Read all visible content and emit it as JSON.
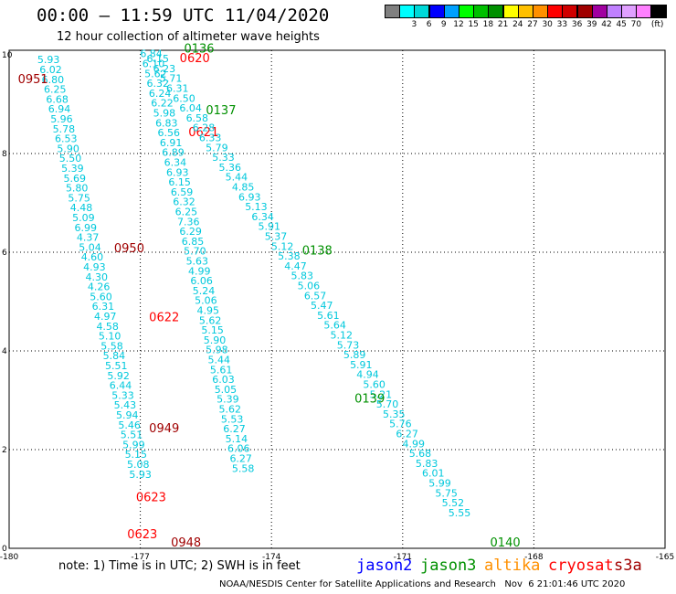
{
  "title": "00:00 – 11:59 UTC 11/04/2020",
  "subtitle": "12 hour collection of altimeter wave heights",
  "legend": {
    "colors": [
      "#808080",
      "#00ffff",
      "#00d8d8",
      "#0000ff",
      "#00a0ff",
      "#00ff00",
      "#00c000",
      "#009000",
      "#ffff00",
      "#ffc000",
      "#ff9000",
      "#ff0000",
      "#d00000",
      "#a00000",
      "#a000a0",
      "#c080ff",
      "#e0a0ff",
      "#ff80ff",
      "#000000"
    ],
    "labels": [
      "3",
      "6",
      "9",
      "12",
      "15",
      "18",
      "21",
      "24",
      "27",
      "30",
      "33",
      "36",
      "39",
      "42",
      "45",
      "70",
      "(ft)"
    ]
  },
  "axes": {
    "x_ticks": [
      "-180",
      "-177",
      "-174",
      "-171",
      "-168",
      "-165"
    ],
    "y_ticks": [
      "0",
      "2",
      "4",
      "6",
      "8",
      "10"
    ]
  },
  "chart_data": {
    "type": "scatter",
    "x_range": [
      -180,
      -165
    ],
    "y_range": [
      0,
      10
    ],
    "tracks": [
      {
        "points": [
          {
            "x": -179.1,
            "y": 9.83,
            "v": "5.93"
          },
          {
            "x": -179.05,
            "y": 9.63,
            "v": "6.02"
          },
          {
            "x": -179.0,
            "y": 9.43,
            "v": "6.80"
          },
          {
            "x": -178.95,
            "y": 9.23,
            "v": "6.25"
          },
          {
            "x": -178.9,
            "y": 9.03,
            "v": "6.68"
          },
          {
            "x": -178.85,
            "y": 8.83,
            "v": "6.94"
          },
          {
            "x": -178.8,
            "y": 8.63,
            "v": "5.96"
          },
          {
            "x": -178.75,
            "y": 8.43,
            "v": "5.78"
          },
          {
            "x": -178.7,
            "y": 8.23,
            "v": "6.53"
          },
          {
            "x": -178.65,
            "y": 8.03,
            "v": "5.90"
          },
          {
            "x": -178.6,
            "y": 7.83,
            "v": "5.50"
          },
          {
            "x": -178.55,
            "y": 7.63,
            "v": "5.39"
          },
          {
            "x": -178.5,
            "y": 7.43,
            "v": "5.69"
          },
          {
            "x": -178.45,
            "y": 7.23,
            "v": "5.80"
          },
          {
            "x": -178.4,
            "y": 7.03,
            "v": "5.75"
          },
          {
            "x": -178.35,
            "y": 6.83,
            "v": "4.48"
          },
          {
            "x": -178.3,
            "y": 6.63,
            "v": "5.09"
          },
          {
            "x": -178.25,
            "y": 6.43,
            "v": "6.99"
          },
          {
            "x": -178.2,
            "y": 6.23,
            "v": "4.37"
          },
          {
            "x": -178.15,
            "y": 6.03,
            "v": "5.04"
          },
          {
            "x": -178.1,
            "y": 5.83,
            "v": "4.60"
          },
          {
            "x": -178.05,
            "y": 5.63,
            "v": "4.93"
          },
          {
            "x": -178.0,
            "y": 5.43,
            "v": "4.30"
          },
          {
            "x": -177.95,
            "y": 5.23,
            "v": "4.26"
          },
          {
            "x": -177.9,
            "y": 5.03,
            "v": "5.60"
          },
          {
            "x": -177.85,
            "y": 4.83,
            "v": "6.31"
          },
          {
            "x": -177.8,
            "y": 4.63,
            "v": "4.97"
          },
          {
            "x": -177.75,
            "y": 4.43,
            "v": "4.58"
          },
          {
            "x": -177.7,
            "y": 4.23,
            "v": "5.10"
          },
          {
            "x": -177.65,
            "y": 4.03,
            "v": "5.58"
          },
          {
            "x": -177.6,
            "y": 3.83,
            "v": "5.84"
          },
          {
            "x": -177.55,
            "y": 3.63,
            "v": "5.51"
          },
          {
            "x": -177.5,
            "y": 3.43,
            "v": "5.92"
          },
          {
            "x": -177.45,
            "y": 3.23,
            "v": "6.44"
          },
          {
            "x": -177.4,
            "y": 3.03,
            "v": "5.33"
          },
          {
            "x": -177.35,
            "y": 2.83,
            "v": "5.43"
          },
          {
            "x": -177.3,
            "y": 2.63,
            "v": "5.94"
          },
          {
            "x": -177.25,
            "y": 2.43,
            "v": "5.46"
          },
          {
            "x": -177.2,
            "y": 2.23,
            "v": "5.51"
          },
          {
            "x": -177.15,
            "y": 2.03,
            "v": "5.99"
          },
          {
            "x": -177.1,
            "y": 1.83,
            "v": "5.15"
          },
          {
            "x": -177.05,
            "y": 1.63,
            "v": "5.08"
          },
          {
            "x": -177.0,
            "y": 1.43,
            "v": "5.93"
          }
        ],
        "passes": [
          {
            "label": "0951",
            "x": -179.8,
            "y": 9.43,
            "color": "#a00000"
          },
          {
            "label": "0950",
            "x": -177.6,
            "y": 6.0,
            "color": "#a00000"
          },
          {
            "label": "0949",
            "x": -176.8,
            "y": 2.35,
            "color": "#a00000"
          },
          {
            "label": "0948",
            "x": -176.3,
            "y": 0.04,
            "color": "#a00000"
          }
        ]
      },
      {
        "points": [
          {
            "x": -176.75,
            "y": 9.95,
            "v": "6.84"
          },
          {
            "x": -176.7,
            "y": 9.75,
            "v": "6.10"
          },
          {
            "x": -176.65,
            "y": 9.55,
            "v": "5.62"
          },
          {
            "x": -176.6,
            "y": 9.35,
            "v": "6.32"
          },
          {
            "x": -176.55,
            "y": 9.15,
            "v": "6.24"
          },
          {
            "x": -176.5,
            "y": 8.95,
            "v": "6.22"
          },
          {
            "x": -176.45,
            "y": 8.75,
            "v": "5.98"
          },
          {
            "x": -176.4,
            "y": 8.55,
            "v": "6.83"
          },
          {
            "x": -176.35,
            "y": 8.35,
            "v": "6.56"
          },
          {
            "x": -176.3,
            "y": 8.15,
            "v": "6.91"
          },
          {
            "x": -176.25,
            "y": 7.95,
            "v": "6.89"
          },
          {
            "x": -176.2,
            "y": 7.75,
            "v": "6.34"
          },
          {
            "x": -176.15,
            "y": 7.55,
            "v": "6.93"
          },
          {
            "x": -176.1,
            "y": 7.35,
            "v": "6.15"
          },
          {
            "x": -176.05,
            "y": 7.15,
            "v": "6.59"
          },
          {
            "x": -176.0,
            "y": 6.95,
            "v": "6.32"
          },
          {
            "x": -175.95,
            "y": 6.75,
            "v": "6.25"
          },
          {
            "x": -175.9,
            "y": 6.55,
            "v": "7.36"
          },
          {
            "x": -175.85,
            "y": 6.35,
            "v": "6.29"
          },
          {
            "x": -175.8,
            "y": 6.15,
            "v": "6.85"
          },
          {
            "x": -175.75,
            "y": 5.95,
            "v": "5.70"
          },
          {
            "x": -175.7,
            "y": 5.75,
            "v": "5.63"
          },
          {
            "x": -175.65,
            "y": 5.55,
            "v": "4.99"
          },
          {
            "x": -175.6,
            "y": 5.35,
            "v": "6.06"
          },
          {
            "x": -175.55,
            "y": 5.15,
            "v": "5.24"
          },
          {
            "x": -175.5,
            "y": 4.95,
            "v": "5.06"
          },
          {
            "x": -175.45,
            "y": 4.75,
            "v": "4.95"
          },
          {
            "x": -175.4,
            "y": 4.55,
            "v": "5.62"
          },
          {
            "x": -175.35,
            "y": 4.35,
            "v": "5.15"
          },
          {
            "x": -175.3,
            "y": 4.15,
            "v": "5.90"
          },
          {
            "x": -175.25,
            "y": 3.95,
            "v": "5.98"
          },
          {
            "x": -175.2,
            "y": 3.75,
            "v": "5.44"
          },
          {
            "x": -175.15,
            "y": 3.55,
            "v": "5.61"
          },
          {
            "x": -175.1,
            "y": 3.35,
            "v": "6.03"
          },
          {
            "x": -175.05,
            "y": 3.15,
            "v": "5.05"
          },
          {
            "x": -175.0,
            "y": 2.95,
            "v": "5.39"
          },
          {
            "x": -174.95,
            "y": 2.75,
            "v": "5.62"
          },
          {
            "x": -174.9,
            "y": 2.55,
            "v": "5.53"
          },
          {
            "x": -174.85,
            "y": 2.35,
            "v": "6.27"
          },
          {
            "x": -174.8,
            "y": 2.15,
            "v": "5.14"
          },
          {
            "x": -174.75,
            "y": 1.95,
            "v": "6.06"
          },
          {
            "x": -174.7,
            "y": 1.75,
            "v": "6.27"
          },
          {
            "x": -174.65,
            "y": 1.55,
            "v": "5.58"
          }
        ],
        "passes": [
          {
            "label": "0620",
            "x": -176.1,
            "y": 9.85,
            "color": "#ff0000"
          },
          {
            "label": "0621",
            "x": -175.9,
            "y": 8.35,
            "color": "#ff0000"
          },
          {
            "label": "0622",
            "x": -176.8,
            "y": 4.6,
            "color": "#ff0000"
          },
          {
            "label": "0623",
            "x": -177.1,
            "y": 0.95,
            "color": "#ff0000"
          },
          {
            "label": "0623",
            "x": -177.3,
            "y": 0.2,
            "color": "#ff0000"
          }
        ]
      },
      {
        "points": [
          {
            "x": -176.6,
            "y": 9.85,
            "v": "6.15"
          },
          {
            "x": -176.45,
            "y": 9.65,
            "v": "6.23"
          },
          {
            "x": -176.3,
            "y": 9.45,
            "v": "5.71"
          },
          {
            "x": -176.15,
            "y": 9.25,
            "v": "6.31"
          },
          {
            "x": -176.0,
            "y": 9.05,
            "v": "6.50"
          },
          {
            "x": -175.85,
            "y": 8.85,
            "v": "6.04"
          },
          {
            "x": -175.7,
            "y": 8.65,
            "v": "6.58"
          },
          {
            "x": -175.55,
            "y": 8.45,
            "v": "6.28"
          },
          {
            "x": -175.4,
            "y": 8.25,
            "v": "6.33"
          },
          {
            "x": -175.25,
            "y": 8.05,
            "v": "5.79"
          },
          {
            "x": -175.1,
            "y": 7.85,
            "v": "5.33"
          },
          {
            "x": -174.95,
            "y": 7.65,
            "v": "5.36"
          },
          {
            "x": -174.8,
            "y": 7.45,
            "v": "5.44"
          },
          {
            "x": -174.65,
            "y": 7.25,
            "v": "4.85"
          },
          {
            "x": -174.5,
            "y": 7.05,
            "v": "6.93"
          },
          {
            "x": -174.35,
            "y": 6.85,
            "v": "5.13"
          },
          {
            "x": -174.2,
            "y": 6.65,
            "v": "6.34"
          },
          {
            "x": -174.05,
            "y": 6.45,
            "v": "5.91"
          },
          {
            "x": -173.9,
            "y": 6.25,
            "v": "5.37"
          },
          {
            "x": -173.75,
            "y": 6.05,
            "v": "5.12"
          },
          {
            "x": -173.6,
            "y": 5.85,
            "v": "5.38"
          },
          {
            "x": -173.45,
            "y": 5.65,
            "v": "4.47"
          },
          {
            "x": -173.3,
            "y": 5.45,
            "v": "5.83"
          },
          {
            "x": -173.15,
            "y": 5.25,
            "v": "5.06"
          },
          {
            "x": -173.0,
            "y": 5.05,
            "v": "6.57"
          },
          {
            "x": -172.85,
            "y": 4.85,
            "v": "5.47"
          },
          {
            "x": -172.7,
            "y": 4.65,
            "v": "5.61"
          },
          {
            "x": -172.55,
            "y": 4.45,
            "v": "5.64"
          },
          {
            "x": -172.4,
            "y": 4.25,
            "v": "5.12"
          },
          {
            "x": -172.25,
            "y": 4.05,
            "v": "5.73"
          },
          {
            "x": -172.1,
            "y": 3.85,
            "v": "5.89"
          },
          {
            "x": -171.95,
            "y": 3.65,
            "v": "5.91"
          },
          {
            "x": -171.8,
            "y": 3.45,
            "v": "4.94"
          },
          {
            "x": -171.65,
            "y": 3.25,
            "v": "5.60"
          },
          {
            "x": -171.5,
            "y": 3.05,
            "v": "5.21"
          },
          {
            "x": -171.35,
            "y": 2.85,
            "v": "5.70"
          },
          {
            "x": -171.2,
            "y": 2.65,
            "v": "5.35"
          },
          {
            "x": -171.05,
            "y": 2.45,
            "v": "5.76"
          },
          {
            "x": -170.9,
            "y": 2.25,
            "v": "6.27"
          },
          {
            "x": -170.75,
            "y": 2.05,
            "v": "4.99"
          },
          {
            "x": -170.6,
            "y": 1.85,
            "v": "5.68"
          },
          {
            "x": -170.45,
            "y": 1.65,
            "v": "5.83"
          },
          {
            "x": -170.3,
            "y": 1.45,
            "v": "6.01"
          },
          {
            "x": -170.15,
            "y": 1.25,
            "v": "5.99"
          },
          {
            "x": -170.0,
            "y": 1.05,
            "v": "5.75"
          },
          {
            "x": -169.85,
            "y": 0.85,
            "v": "5.52"
          },
          {
            "x": -169.7,
            "y": 0.65,
            "v": "5.55"
          }
        ],
        "passes": [
          {
            "label": "0136",
            "x": -176.0,
            "y": 10.05,
            "color": "#009000"
          },
          {
            "label": "0137",
            "x": -175.5,
            "y": 8.8,
            "color": "#009000"
          },
          {
            "label": "0138",
            "x": -173.3,
            "y": 5.95,
            "color": "#009000"
          },
          {
            "label": "0139",
            "x": -172.1,
            "y": 2.95,
            "color": "#009000"
          },
          {
            "label": "0140",
            "x": -169.0,
            "y": 0.04,
            "color": "#009000"
          }
        ]
      }
    ]
  },
  "satellites": [
    {
      "name": "jason2",
      "color": "#0000ff"
    },
    {
      "name": "jason3",
      "color": "#009000"
    },
    {
      "name": "altika",
      "color": "#ff9000"
    },
    {
      "name": "cryosat",
      "color": "#ff0000"
    },
    {
      "name": "s3a",
      "color": "#a00000"
    }
  ],
  "note": "note: 1) Time is in UTC; 2) SWH is in feet",
  "footer": "NOAA/NESDIS Center for Satellite Applications and Research   Nov  6 21:01:46 UTC 2020"
}
